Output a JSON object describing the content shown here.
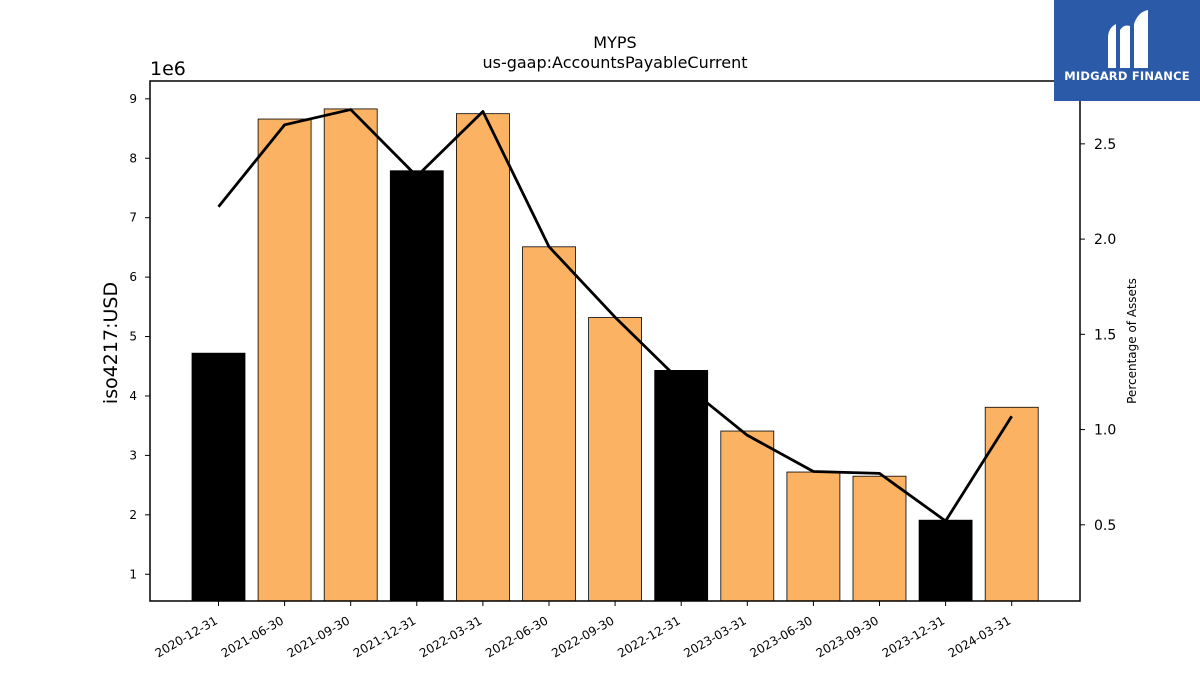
{
  "chart_data": {
    "type": "bar",
    "title": "MYPS",
    "subtitle": "us-gaap:AccountsPayableCurrent",
    "ylabel": "iso4217:USD",
    "y_offset_label": "1e6",
    "y2label": "Percentage of Assets",
    "categories": [
      "2020-12-31",
      "2021-06-30",
      "2021-09-30",
      "2021-12-31",
      "2022-03-31",
      "2022-06-30",
      "2022-09-30",
      "2022-12-31",
      "2023-03-31",
      "2023-06-30",
      "2023-09-30",
      "2023-12-31",
      "2024-03-31"
    ],
    "series": [
      {
        "type": "bar",
        "values": [
          4.72,
          8.66,
          8.83,
          7.79,
          8.75,
          6.51,
          5.32,
          4.43,
          3.41,
          2.72,
          2.65,
          1.91,
          3.81
        ],
        "colors": [
          "#000000",
          "#fbb263",
          "#fbb263",
          "#000000",
          "#fbb263",
          "#fbb263",
          "#fbb263",
          "#000000",
          "#fbb263",
          "#fbb263",
          "#fbb263",
          "#000000",
          "#fbb263"
        ]
      },
      {
        "type": "line",
        "axis": "right",
        "values": [
          2.17,
          2.6,
          2.68,
          2.33,
          2.67,
          1.96,
          1.59,
          1.25,
          0.97,
          0.78,
          0.77,
          0.52,
          1.07
        ],
        "color": "#000000"
      }
    ],
    "ylim": [
      0.55,
      9.3
    ],
    "yticks": [
      1,
      2,
      3,
      4,
      5,
      6,
      7,
      8,
      9
    ],
    "y2lim": [
      0.1,
      2.83
    ],
    "y2ticks": [
      0.5,
      1.0,
      1.5,
      2.0,
      2.5
    ],
    "y2ticklabels": [
      "0.5",
      "1.0",
      "1.5",
      "2.0",
      "2.5"
    ]
  },
  "logo": {
    "text": "MIDGARD FINANCE",
    "background": "#2b5aa8",
    "icon": "midgard-m-logo-icon"
  }
}
